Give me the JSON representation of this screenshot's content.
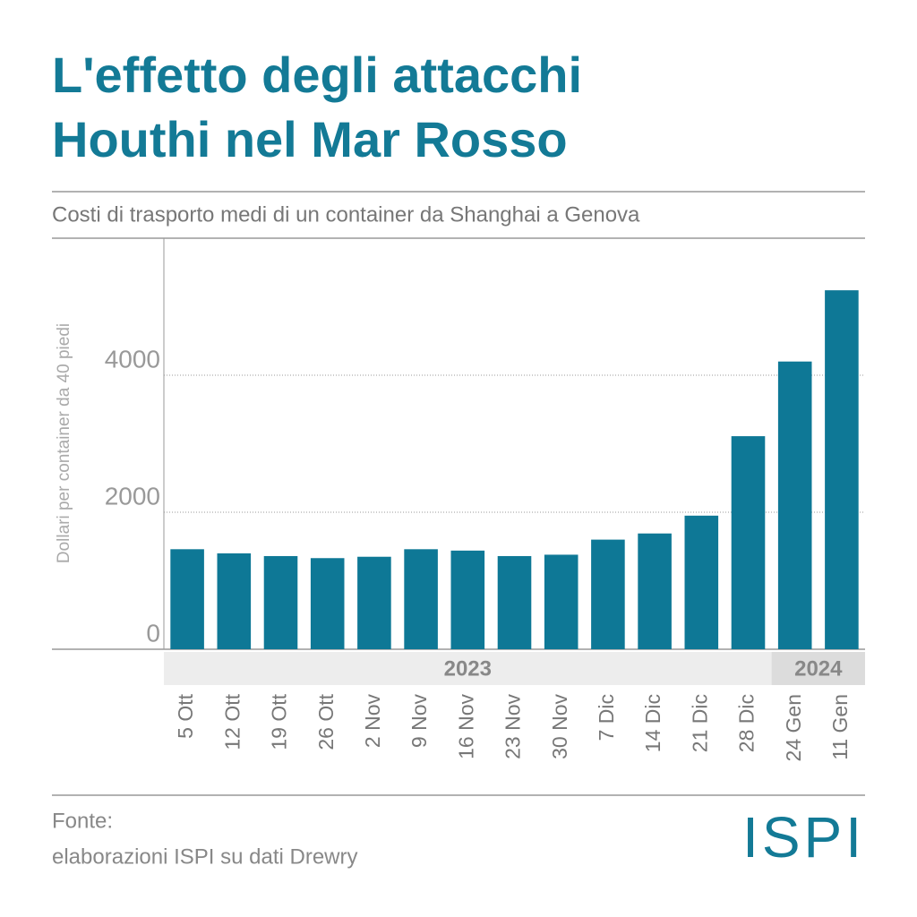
{
  "chart_data": {
    "type": "bar",
    "title_lines": [
      "L'effetto degli attacchi",
      "Houthi nel Mar Rosso"
    ],
    "subtitle": "Costi di trasporto medi di un container da Shanghai a Genova",
    "y_label": "Dollari per container da 40 piedi",
    "categories": [
      "5 Ott",
      "12 Ott",
      "19 Ott",
      "26 Ott",
      "2 Nov",
      "9 Nov",
      "16 Nov",
      "23 Nov",
      "30 Nov",
      "7 Dic",
      "14 Dic",
      "21 Dic",
      "28 Dic",
      "24 Gen",
      "11 Gen"
    ],
    "values": [
      1460,
      1400,
      1360,
      1330,
      1350,
      1460,
      1440,
      1360,
      1380,
      1600,
      1690,
      1950,
      3110,
      4200,
      5240
    ],
    "color": "#0e7896",
    "year_labels": [
      "2023",
      "2024"
    ],
    "ylim": [
      0,
      6000
    ],
    "yticks": [
      0,
      2000,
      4000
    ],
    "grid": true,
    "source_lines": [
      "Fonte:",
      "elaborazioni ISPI su dati Drewry"
    ],
    "logo": "ISPI"
  }
}
